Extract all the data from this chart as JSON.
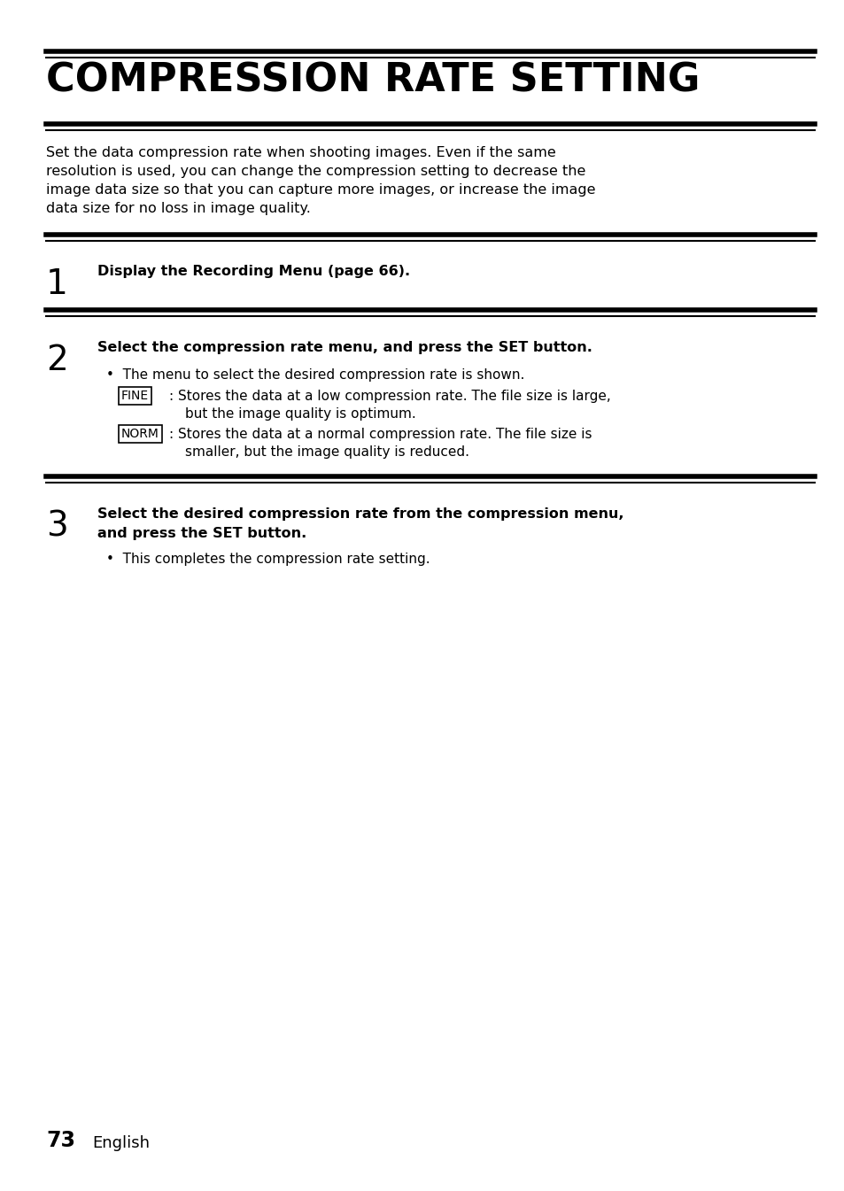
{
  "title": "COMPRESSION RATE SETTING",
  "bg_color": "#ffffff",
  "text_color": "#000000",
  "intro_text": "Set the data compression rate when shooting images. Even if the same\nresolution is used, you can change the compression setting to decrease the\nimage data size so that you can capture more images, or increase the image\ndata size for no loss in image quality.",
  "step1_num": "1",
  "step1_bold": "Display the Recording Menu (page 66).",
  "step2_num": "2",
  "step2_bold": "Select the compression rate menu, and press the SET button.",
  "step2_bullet": "The menu to select the desired compression rate is shown.",
  "fine_label": "FINE",
  "fine_text_line1": "Stores the data at a low compression rate. The file size is large,",
  "fine_text_line2": "but the image quality is optimum.",
  "norm_label": "NORM",
  "norm_text_line1": "Stores the data at a normal compression rate. The file size is",
  "norm_text_line2": "smaller, but the image quality is reduced.",
  "step3_num": "3",
  "step3_line1": "Select the desired compression rate from the compression menu,",
  "step3_line2": "and press the SET button.",
  "step3_bullet": "This completes the compression rate setting.",
  "footer_num": "73",
  "footer_text": "English",
  "fig_width": 9.54,
  "fig_height": 13.45,
  "dpi": 100
}
